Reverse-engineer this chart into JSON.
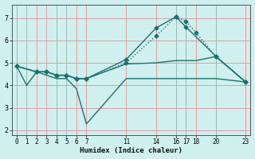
{
  "xlabel": "Humidex (Indice chaleur)",
  "bg_color": "#cff0ee",
  "grid_color": "#d9a0a0",
  "line_color": "#1e7070",
  "xlim": [
    -0.5,
    23.5
  ],
  "ylim": [
    1.8,
    7.6
  ],
  "xticks": [
    0,
    1,
    2,
    3,
    4,
    5,
    6,
    7,
    11,
    14,
    16,
    17,
    18,
    20,
    23
  ],
  "yticks": [
    2,
    3,
    4,
    5,
    6,
    7
  ],
  "lines": [
    {
      "x": [
        0,
        1,
        2,
        3,
        4,
        5,
        6,
        7,
        11,
        14,
        16,
        17,
        18,
        20,
        23
      ],
      "y": [
        4.85,
        4.0,
        4.6,
        4.45,
        4.3,
        4.3,
        3.85,
        2.28,
        4.3,
        4.3,
        4.3,
        4.3,
        4.3,
        4.3,
        4.15
      ],
      "marker": false,
      "dotted": false
    },
    {
      "x": [
        0,
        2,
        3,
        4,
        5,
        6,
        7,
        11,
        14,
        16,
        17,
        20,
        23
      ],
      "y": [
        4.85,
        4.6,
        4.6,
        4.45,
        4.45,
        4.3,
        4.3,
        5.15,
        6.55,
        7.05,
        6.6,
        5.3,
        4.15
      ],
      "marker": true,
      "dotted": false
    },
    {
      "x": [
        0,
        2,
        3,
        4,
        5,
        6,
        7,
        11,
        14,
        16,
        17,
        18,
        20,
        23
      ],
      "y": [
        4.85,
        4.6,
        4.6,
        4.45,
        4.45,
        4.3,
        4.3,
        5.0,
        6.2,
        7.05,
        6.85,
        6.35,
        5.28,
        4.15
      ],
      "marker": true,
      "dotted": true
    },
    {
      "x": [
        0,
        2,
        3,
        4,
        5,
        6,
        7,
        11,
        14,
        16,
        17,
        18,
        20,
        23
      ],
      "y": [
        4.85,
        4.6,
        4.6,
        4.45,
        4.45,
        4.3,
        4.3,
        4.95,
        5.0,
        5.1,
        5.1,
        5.1,
        5.28,
        4.15
      ],
      "marker": false,
      "dotted": false
    }
  ]
}
